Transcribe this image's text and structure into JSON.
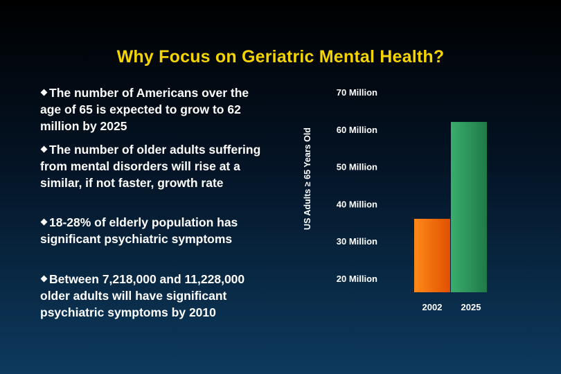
{
  "title": "Why Focus on Geriatric Mental Health?",
  "bullets": [
    {
      "text": "The number of Americans over the age of 65 is expected to grow to 62 million by 2025"
    },
    {
      "text": "The number of older adults suffering from mental disorders will rise at a similar, if not faster, growth rate"
    },
    {
      "text": "18-28% of elderly population has significant psychiatric symptoms"
    },
    {
      "text": "Between 7,218,000 and 11,228,000 older adults will have significant psychiatric symptoms by 2010"
    }
  ],
  "colors": {
    "title": "#f5d400",
    "bar_2002": "#ff6a00",
    "bar_2025": "#2e9a5e"
  },
  "chart_data": {
    "type": "bar",
    "categories": [
      "2002",
      "2025"
    ],
    "values": [
      36,
      62
    ],
    "ylabel": "US Adults ≥ 65 Years Old",
    "ylim": [
      20,
      70
    ],
    "yticks": [
      20,
      30,
      40,
      50,
      60,
      70
    ],
    "ytick_labels": [
      "20 Million",
      "30 Million",
      "40 Million",
      "50 Million",
      "60 Million",
      "70 Million"
    ],
    "grid": false,
    "legend": "none"
  }
}
